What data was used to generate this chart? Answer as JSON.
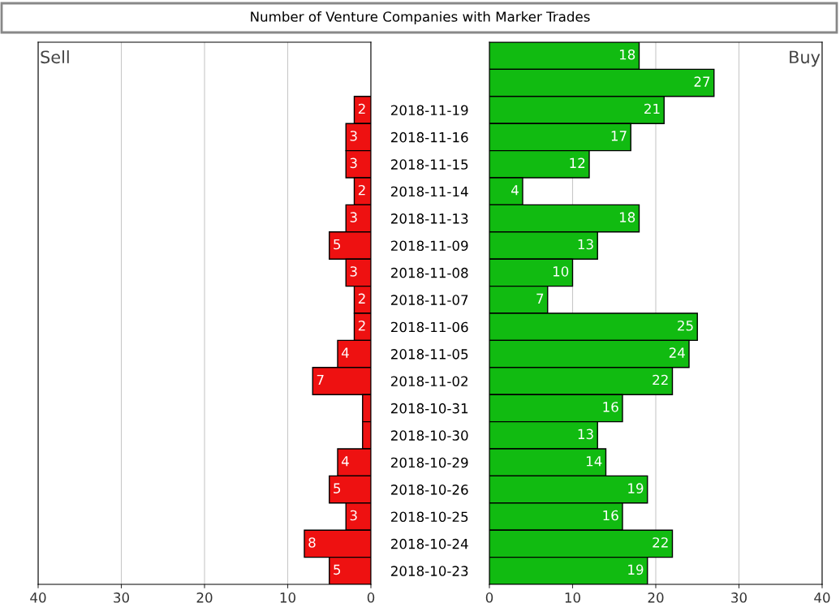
{
  "chart_data": [
    {
      "type": "bar",
      "orientation": "horizontal",
      "title": "Number of Venture Companies with Marker Trades",
      "categories": [
        null,
        null,
        "2018-11-19",
        "2018-11-16",
        "2018-11-15",
        "2018-11-14",
        "2018-11-13",
        "2018-11-09",
        "2018-11-08",
        "2018-11-07",
        "2018-11-06",
        "2018-11-05",
        "2018-11-02",
        "2018-10-31",
        "2018-10-30",
        "2018-10-29",
        "2018-10-26",
        "2018-10-25",
        "2018-10-24",
        "2018-10-23"
      ],
      "values": [
        null,
        null,
        2,
        3,
        3,
        2,
        3,
        5,
        3,
        2,
        2,
        4,
        7,
        1,
        1,
        4,
        5,
        3,
        8,
        5
      ],
      "value_labels": [
        null,
        null,
        "2",
        "3",
        "3",
        "2",
        "3",
        "5",
        "3",
        "2",
        "2",
        "4",
        "7",
        null,
        null,
        "4",
        "5",
        "3",
        "8",
        "5"
      ],
      "color": "#ee1111",
      "xlim": [
        40,
        0
      ],
      "xticks": [
        40,
        30,
        20,
        10,
        0
      ],
      "grid": "x",
      "annotations": [
        "Sell"
      ]
    },
    {
      "type": "bar",
      "orientation": "horizontal",
      "categories": [
        null,
        null,
        "2018-11-19",
        "2018-11-16",
        "2018-11-15",
        "2018-11-14",
        "2018-11-13",
        "2018-11-09",
        "2018-11-08",
        "2018-11-07",
        "2018-11-06",
        "2018-11-05",
        "2018-11-02",
        "2018-10-31",
        "2018-10-30",
        "2018-10-29",
        "2018-10-26",
        "2018-10-25",
        "2018-10-24",
        "2018-10-23"
      ],
      "values": [
        18,
        27,
        21,
        17,
        12,
        4,
        18,
        13,
        10,
        7,
        25,
        24,
        22,
        16,
        13,
        14,
        19,
        16,
        22,
        19
      ],
      "data_labels": true,
      "tick_labels": "x",
      "color": "#11bb11",
      "xlim": [
        0,
        40
      ],
      "xticks": [
        0,
        10,
        20,
        30,
        40
      ],
      "grid": "x",
      "annotations": [
        "Buy"
      ]
    }
  ]
}
